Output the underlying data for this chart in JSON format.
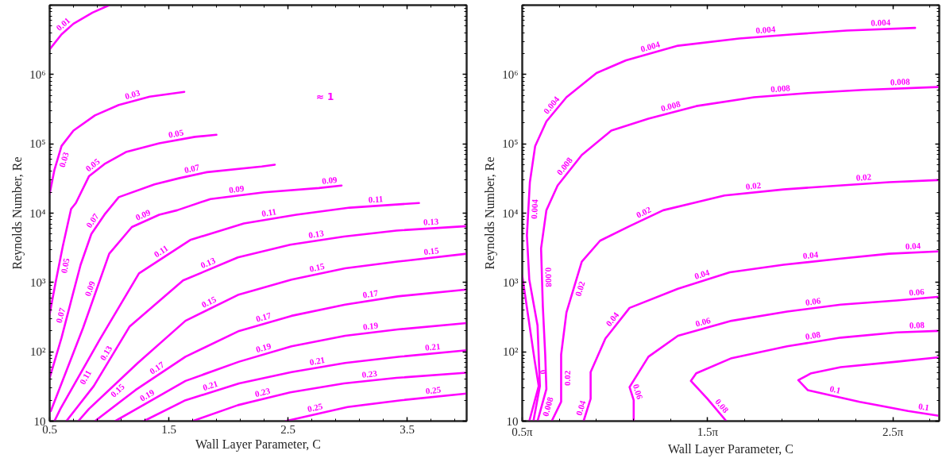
{
  "chart_data": [
    {
      "type": "line",
      "xlabel": "Wall Layer Parameter, C",
      "ylabel": "Reynolds Number, Re",
      "log": true,
      "xlim": [
        0.5,
        4
      ],
      "ylim": [
        10,
        10000000
      ],
      "xticks": [
        0.5,
        1.5,
        2.5,
        3.5
      ],
      "yticks": [
        {
          "value": 10,
          "label": "10"
        },
        {
          "value": 100,
          "label": "10²"
        },
        {
          "value": 1000,
          "label": "10³"
        },
        {
          "value": 10000,
          "label": "10⁴"
        },
        {
          "value": 100000,
          "label": "10⁵"
        },
        {
          "value": 1000000,
          "label": "10⁶"
        }
      ],
      "annotations": [
        "≈ 1"
      ],
      "series": [
        {
          "name": "0.01",
          "color": "#ff00ff",
          "x": [
            0.5,
            0.6,
            0.7,
            0.86,
            1.0
          ],
          "values": [
            2300000,
            3800000,
            5400000,
            7800000,
            10000000
          ]
        },
        {
          "name": "0.03",
          "color": "#ff00ff",
          "x": [
            0.5,
            0.54,
            0.6,
            0.7,
            0.88,
            1.08,
            1.34,
            1.63
          ],
          "values": [
            19000,
            42000,
            93000,
            155000,
            257000,
            363000,
            479000,
            562000
          ]
        },
        {
          "name": "0.05",
          "color": "#ff00ff",
          "x": [
            0.5,
            0.55,
            0.61,
            0.68,
            0.72,
            0.83,
            0.96,
            1.14,
            1.42,
            1.72,
            1.9
          ],
          "values": [
            350,
            1000,
            3300,
            11500,
            14000,
            34000,
            51000,
            76000,
            102000,
            126000,
            135000
          ]
        },
        {
          "name": "0.07",
          "color": "#ff00ff",
          "x": [
            0.5,
            0.6,
            0.69,
            0.76,
            0.85,
            0.96,
            1.08,
            1.38,
            1.59,
            1.82,
            2.28,
            2.39
          ],
          "values": [
            42,
            160,
            630,
            1800,
            5000,
            9500,
            17000,
            26000,
            32000,
            39000,
            47000,
            50000
          ]
        },
        {
          "name": "0.09",
          "color": "#ff00ff",
          "x": [
            0.51,
            0.78,
            1.0,
            1.19,
            1.42,
            1.57,
            1.85,
            2.3,
            2.76,
            2.95
          ],
          "values": [
            14,
            220,
            2600,
            6300,
            9500,
            11000,
            16000,
            20000,
            23000,
            25000
          ]
        },
        {
          "name": "0.11",
          "color": "#ff00ff",
          "x": [
            0.54,
            0.59,
            0.92,
            1.25,
            1.68,
            2.13,
            2.57,
            3.02,
            3.46,
            3.6
          ],
          "values": [
            10,
            15,
            150,
            1350,
            4100,
            7100,
            9500,
            12000,
            13500,
            14000
          ]
        },
        {
          "name": "0.13",
          "color": "#ff00ff",
          "x": [
            0.64,
            0.87,
            1.17,
            1.62,
            2.08,
            2.52,
            2.97,
            3.41,
            4.0
          ],
          "values": [
            10,
            32,
            230,
            1070,
            2300,
            3500,
            4600,
            5600,
            6500
          ]
        },
        {
          "name": "0.15",
          "color": "#ff00ff",
          "x": [
            0.74,
            0.83,
            1.24,
            1.64,
            2.08,
            2.53,
            2.98,
            3.42,
            4.0
          ],
          "values": [
            10,
            15,
            69,
            280,
            660,
            1100,
            1600,
            2000,
            2600
          ]
        },
        {
          "name": "0.17",
          "color": "#ff00ff",
          "x": [
            0.88,
            1.22,
            1.64,
            2.09,
            2.53,
            2.98,
            3.42,
            4.0
          ],
          "values": [
            10,
            28,
            85,
            200,
            330,
            480,
            630,
            790
          ]
        },
        {
          "name": "0.19",
          "color": "#ff00ff",
          "x": [
            1.05,
            1.64,
            2.09,
            2.53,
            2.98,
            3.42,
            4.0
          ],
          "values": [
            10,
            38,
            72,
            120,
            170,
            210,
            260
          ]
        },
        {
          "name": "0.21",
          "color": "#ff00ff",
          "x": [
            1.29,
            1.64,
            2.09,
            2.53,
            2.98,
            3.44,
            4.0
          ],
          "values": [
            10,
            20,
            35,
            51,
            69,
            85,
            105
          ]
        },
        {
          "name": "0.23",
          "color": "#ff00ff",
          "x": [
            1.7,
            2.08,
            2.52,
            2.97,
            3.41,
            4.0
          ],
          "values": [
            10,
            17,
            26,
            35,
            42,
            50
          ]
        },
        {
          "name": "0.25",
          "color": "#ff00ff",
          "x": [
            2.48,
            3.0,
            3.45,
            4.0
          ],
          "values": [
            10,
            16,
            20,
            25
          ]
        }
      ]
    },
    {
      "type": "line",
      "xlabel": "Wall Layer Parameter, C",
      "ylabel": "Reynolds Number, Re",
      "log": true,
      "xlim": [
        1.5708,
        8.6394
      ],
      "ylim": [
        10,
        10000000
      ],
      "xticks": [
        {
          "value": 1.5708,
          "label": "0.5π"
        },
        {
          "value": 4.7124,
          "label": "1.5π"
        },
        {
          "value": 7.854,
          "label": "2.5π"
        }
      ],
      "yticks": [
        {
          "value": 10,
          "label": "10"
        },
        {
          "value": 100,
          "label": "10²"
        },
        {
          "value": 1000,
          "label": "10³"
        },
        {
          "value": 10000,
          "label": "10⁴"
        },
        {
          "value": 100000,
          "label": "10⁵"
        },
        {
          "value": 1000000,
          "label": "10⁶"
        }
      ],
      "series": [
        {
          "name": "0",
          "color": "#ff00ff",
          "x": [
            1.5708,
            1.78,
            1.85,
            1.69
          ],
          "values": [
            1260,
            76,
            32,
            10
          ]
        },
        {
          "name": "0.004",
          "color": "#ff00ff",
          "x": [
            1.76,
            1.87,
            1.83,
            1.69,
            1.65,
            1.7,
            1.79,
            1.98,
            2.32,
            2.83,
            3.33,
            4.21,
            5.25,
            6.16,
            7.07,
            8.23
          ],
          "values": [
            10,
            32,
            240,
            1100,
            4800,
            28000,
            93000,
            210000,
            470000,
            1050000,
            1600000,
            2600000,
            3300000,
            3800000,
            4300000,
            4700000
          ]
        },
        {
          "name": "0.008",
          "color": "#ff00ff",
          "x": [
            1.83,
            1.98,
            1.96,
            1.92,
            1.89,
            1.98,
            2.17,
            2.58,
            3.08,
            3.71,
            4.52,
            5.5,
            6.41,
            7.35,
            8.61
          ],
          "values": [
            10,
            29,
            91,
            450,
            3100,
            11000,
            25000,
            69000,
            155000,
            230000,
            350000,
            470000,
            540000,
            600000,
            660000
          ]
        },
        {
          "name": "0.02",
          "color": "#ff00ff",
          "x": [
            2.07,
            2.23,
            2.23,
            2.32,
            2.58,
            2.89,
            3.39,
            3.96,
            5.0,
            6.0,
            6.94,
            7.79,
            8.61
          ],
          "values": [
            10,
            19,
            91,
            370,
            2000,
            4000,
            6500,
            11000,
            18000,
            22000,
            25000,
            28000,
            30000
          ]
        },
        {
          "name": "0.04",
          "color": "#ff00ff",
          "x": [
            2.61,
            2.73,
            2.73,
            2.98,
            3.39,
            4.21,
            5.09,
            6.0,
            6.94,
            7.79,
            8.61
          ],
          "values": [
            10,
            21,
            51,
            155,
            430,
            810,
            1400,
            1800,
            2200,
            2600,
            2800
          ]
        },
        {
          "name": "0.06",
          "color": "#ff00ff",
          "x": [
            3.46,
            3.46,
            3.39,
            3.71,
            4.21,
            5.12,
            6.06,
            6.97,
            7.92,
            8.61
          ],
          "values": [
            10,
            20,
            31,
            85,
            170,
            280,
            380,
            480,
            550,
            620
          ]
        },
        {
          "name": "0.08",
          "color": "#ff00ff",
          "x": [
            5.03,
            4.71,
            4.43,
            4.52,
            5.12,
            6.06,
            6.97,
            7.92,
            8.61
          ],
          "values": [
            10,
            21,
            38,
            49,
            81,
            120,
            160,
            190,
            200
          ]
        },
        {
          "name": "0.1",
          "color": "#ff00ff",
          "x": [
            8.61,
            8.11,
            7.29,
            6.41,
            6.25,
            6.47,
            6.97,
            7.92,
            8.61
          ],
          "values": [
            12,
            14,
            19,
            28,
            39,
            49,
            60,
            72,
            83
          ]
        }
      ]
    }
  ]
}
